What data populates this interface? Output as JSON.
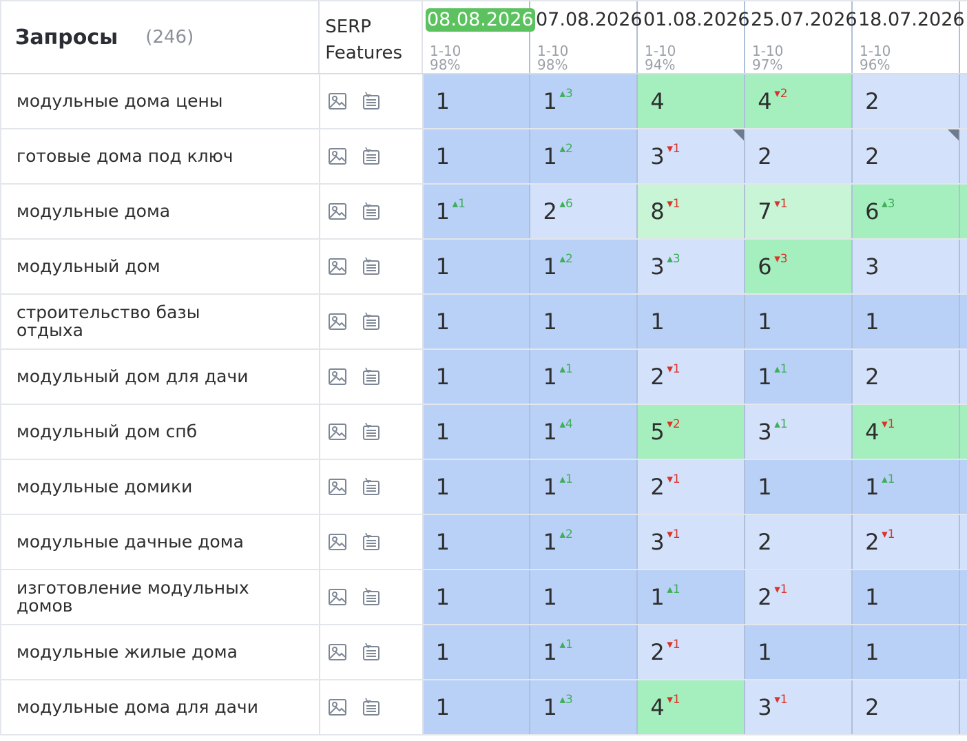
{
  "header": {
    "title": "Запросы",
    "count": "(246)",
    "serp_label": "SERP Features"
  },
  "dates": [
    {
      "label": "08.08.2026",
      "range": "1-10",
      "pct": "98%",
      "active": true
    },
    {
      "label": "07.08.2026",
      "range": "1-10",
      "pct": "98%",
      "active": false
    },
    {
      "label": "01.08.2026",
      "range": "1-10",
      "pct": "94%",
      "active": false
    },
    {
      "label": "25.07.2026",
      "range": "1-10",
      "pct": "97%",
      "active": false
    },
    {
      "label": "18.07.2026",
      "range": "1-10",
      "pct": "96%",
      "active": false
    }
  ],
  "icons": {
    "serp_image": "image-icon",
    "serp_list": "list-icon"
  },
  "colors": {
    "pos1": "#b9d1f7",
    "pos2_3": "#d3e1fb",
    "pos4_6": "#a5efbe",
    "pos7_10": "#c8f5d6",
    "active_date": "#5cc25f",
    "up": "#3fae5a",
    "down": "#d9342b"
  },
  "rows": [
    {
      "query": "модульные дома цены",
      "cells": [
        {
          "pos": "1"
        },
        {
          "pos": "1",
          "ch": "3",
          "dir": "up"
        },
        {
          "pos": "4"
        },
        {
          "pos": "4",
          "ch": "2",
          "dir": "down"
        },
        {
          "pos": "2"
        }
      ]
    },
    {
      "query": "готовые дома под ключ",
      "cells": [
        {
          "pos": "1"
        },
        {
          "pos": "1",
          "ch": "2",
          "dir": "up"
        },
        {
          "pos": "3",
          "ch": "1",
          "dir": "down",
          "corner": true
        },
        {
          "pos": "2"
        },
        {
          "pos": "2",
          "corner": true
        }
      ]
    },
    {
      "query": "модульные дома",
      "cells": [
        {
          "pos": "1",
          "ch": "1",
          "dir": "up"
        },
        {
          "pos": "2",
          "ch": "6",
          "dir": "up"
        },
        {
          "pos": "8",
          "ch": "1",
          "dir": "down"
        },
        {
          "pos": "7",
          "ch": "1",
          "dir": "down"
        },
        {
          "pos": "6",
          "ch": "3",
          "dir": "up"
        }
      ]
    },
    {
      "query": "модульный дом",
      "cells": [
        {
          "pos": "1"
        },
        {
          "pos": "1",
          "ch": "2",
          "dir": "up"
        },
        {
          "pos": "3",
          "ch": "3",
          "dir": "up"
        },
        {
          "pos": "6",
          "ch": "3",
          "dir": "down"
        },
        {
          "pos": "3"
        }
      ]
    },
    {
      "query": "строительство базы отдыха",
      "cells": [
        {
          "pos": "1"
        },
        {
          "pos": "1"
        },
        {
          "pos": "1"
        },
        {
          "pos": "1"
        },
        {
          "pos": "1"
        }
      ]
    },
    {
      "query": "модульный дом для дачи",
      "cells": [
        {
          "pos": "1"
        },
        {
          "pos": "1",
          "ch": "1",
          "dir": "up"
        },
        {
          "pos": "2",
          "ch": "1",
          "dir": "down"
        },
        {
          "pos": "1",
          "ch": "1",
          "dir": "up"
        },
        {
          "pos": "2"
        }
      ]
    },
    {
      "query": "модульный дом спб",
      "cells": [
        {
          "pos": "1"
        },
        {
          "pos": "1",
          "ch": "4",
          "dir": "up"
        },
        {
          "pos": "5",
          "ch": "2",
          "dir": "down"
        },
        {
          "pos": "3",
          "ch": "1",
          "dir": "up"
        },
        {
          "pos": "4",
          "ch": "1",
          "dir": "down"
        }
      ]
    },
    {
      "query": "модульные домики",
      "cells": [
        {
          "pos": "1"
        },
        {
          "pos": "1",
          "ch": "1",
          "dir": "up"
        },
        {
          "pos": "2",
          "ch": "1",
          "dir": "down"
        },
        {
          "pos": "1"
        },
        {
          "pos": "1",
          "ch": "1",
          "dir": "up"
        }
      ]
    },
    {
      "query": "модульные дачные дома",
      "cells": [
        {
          "pos": "1"
        },
        {
          "pos": "1",
          "ch": "2",
          "dir": "up"
        },
        {
          "pos": "3",
          "ch": "1",
          "dir": "down"
        },
        {
          "pos": "2"
        },
        {
          "pos": "2",
          "ch": "1",
          "dir": "down"
        }
      ]
    },
    {
      "query": "изготовление модульных домов",
      "cells": [
        {
          "pos": "1"
        },
        {
          "pos": "1"
        },
        {
          "pos": "1",
          "ch": "1",
          "dir": "up"
        },
        {
          "pos": "2",
          "ch": "1",
          "dir": "down"
        },
        {
          "pos": "1"
        }
      ]
    },
    {
      "query": "модульные жилые дома",
      "cells": [
        {
          "pos": "1"
        },
        {
          "pos": "1",
          "ch": "1",
          "dir": "up"
        },
        {
          "pos": "2",
          "ch": "1",
          "dir": "down"
        },
        {
          "pos": "1"
        },
        {
          "pos": "1"
        }
      ]
    },
    {
      "query": "модульные дома для дачи",
      "cells": [
        {
          "pos": "1"
        },
        {
          "pos": "1",
          "ch": "3",
          "dir": "up"
        },
        {
          "pos": "4",
          "ch": "1",
          "dir": "down"
        },
        {
          "pos": "3",
          "ch": "1",
          "dir": "down"
        },
        {
          "pos": "2"
        }
      ]
    }
  ]
}
